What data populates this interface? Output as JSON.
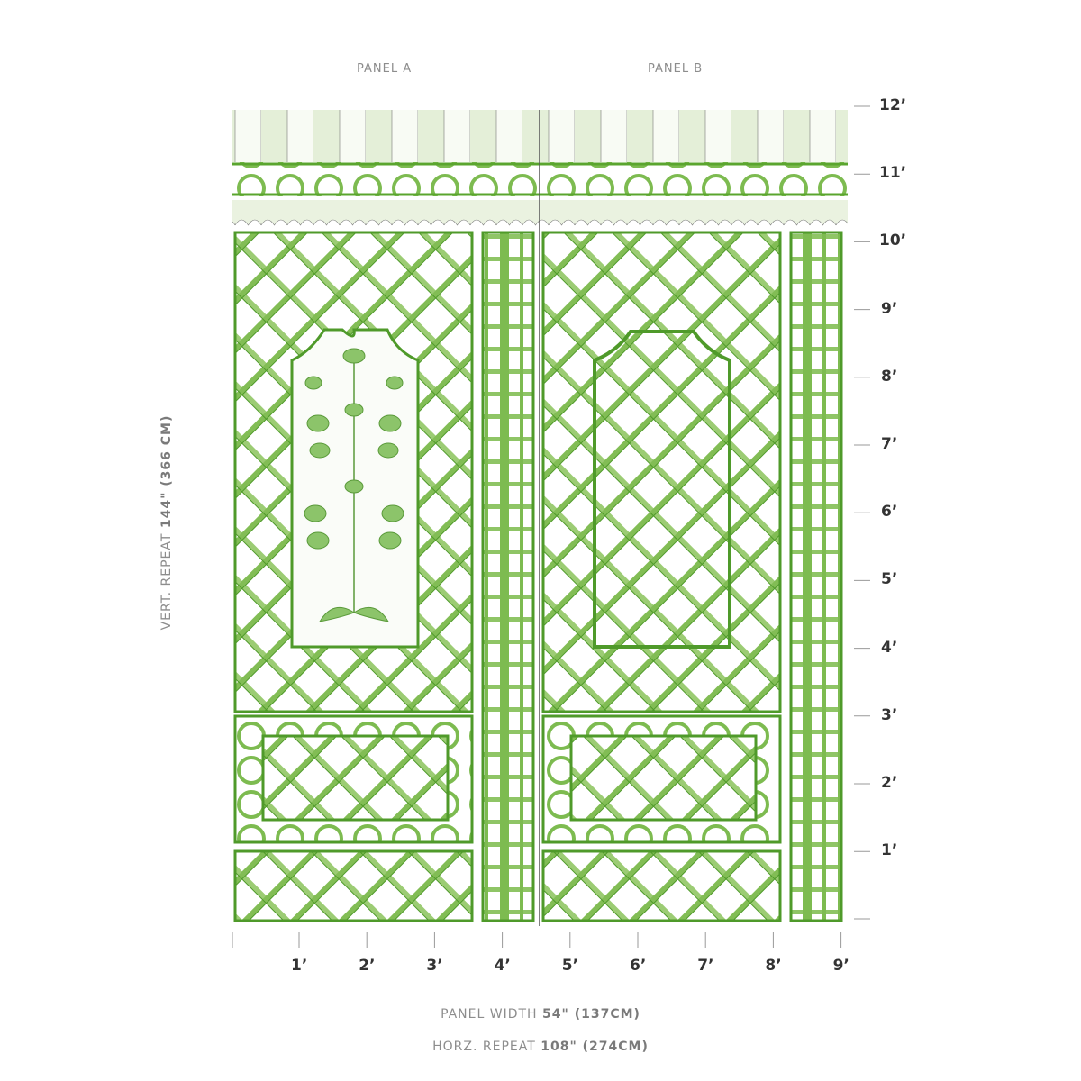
{
  "panels": [
    {
      "label": "PANEL A"
    },
    {
      "label": "PANEL B"
    }
  ],
  "vertical_scale": [
    "12’",
    "11’",
    "10’",
    "9’",
    "8’",
    "7’",
    "6’",
    "5’",
    "4’",
    "3’",
    "2’",
    "1’"
  ],
  "horizontal_scale": [
    "1’",
    "2’",
    "3’",
    "4’",
    "5’",
    "6’",
    "7’",
    "8’",
    "9’"
  ],
  "vertical_repeat": {
    "prefix": "VERT. REPEAT",
    "value": "144\" (366 CM)"
  },
  "panel_width": {
    "prefix": "PANEL WIDTH",
    "value": "54\" (137CM)"
  },
  "horizontal_repeat": {
    "prefix": "HORZ. REPEAT",
    "value": "108\" (274CM)"
  },
  "colors": {
    "lattice_green": "#6db33f",
    "pale_green": "#e3eed6",
    "ruler": "#999999"
  }
}
